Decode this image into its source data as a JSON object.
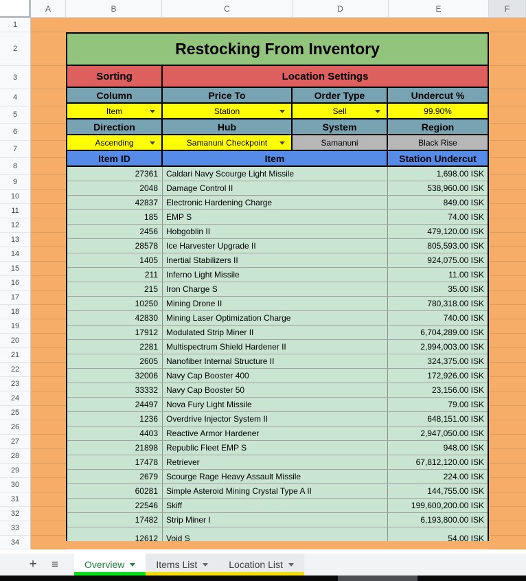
{
  "sheet": {
    "column_headers": [
      "A",
      "B",
      "C",
      "D",
      "E",
      "F"
    ],
    "highlighted_column": "F",
    "first_row": 1,
    "last_row": 34
  },
  "title": "Restocking From Inventory",
  "settings": {
    "section_headers": {
      "sorting": "Sorting",
      "location": "Location Settings"
    },
    "row1_labels": {
      "column": "Column",
      "price_to": "Price To",
      "order_type": "Order Type",
      "undercut": "Undercut %"
    },
    "row1_values": {
      "column": "Item",
      "price_to": "Station",
      "order_type": "Sell",
      "undercut": "99.90%"
    },
    "row2_labels": {
      "direction": "Direction",
      "hub": "Hub",
      "system": "System",
      "region": "Region"
    },
    "row2_values": {
      "direction": "Ascending",
      "hub": "Samanuni Checkpoint",
      "system": "Samanuni",
      "region": "Black Rise"
    }
  },
  "table": {
    "headers": {
      "item_id": "Item ID",
      "item": "Item",
      "station_undercut": "Station Undercut"
    },
    "rows": [
      {
        "row": 9,
        "id": "27361",
        "item": "Caldari Navy Scourge Light Missile",
        "undercut": "1,698.00 ISK"
      },
      {
        "row": 10,
        "id": "2048",
        "item": "Damage Control II",
        "undercut": "538,960.00 ISK"
      },
      {
        "row": 11,
        "id": "42837",
        "item": "Electronic Hardening Charge",
        "undercut": "849.00 ISK"
      },
      {
        "row": 12,
        "id": "185",
        "item": "EMP S",
        "undercut": "74.00 ISK"
      },
      {
        "row": 13,
        "id": "2456",
        "item": "Hobgoblin II",
        "undercut": "479,120.00 ISK"
      },
      {
        "row": 14,
        "id": "28578",
        "item": "Ice Harvester Upgrade II",
        "undercut": "805,593.00 ISK"
      },
      {
        "row": 15,
        "id": "1405",
        "item": "Inertial Stabilizers II",
        "undercut": "924,075.00 ISK"
      },
      {
        "row": 16,
        "id": "211",
        "item": "Inferno Light Missile",
        "undercut": "11.00 ISK"
      },
      {
        "row": 17,
        "id": "215",
        "item": "Iron Charge S",
        "undercut": "35.00 ISK"
      },
      {
        "row": 18,
        "id": "10250",
        "item": "Mining Drone II",
        "undercut": "780,318.00 ISK"
      },
      {
        "row": 19,
        "id": "42830",
        "item": "Mining Laser Optimization Charge",
        "undercut": "740.00 ISK"
      },
      {
        "row": 20,
        "id": "17912",
        "item": "Modulated Strip Miner II",
        "undercut": "6,704,289.00 ISK"
      },
      {
        "row": 21,
        "id": "2281",
        "item": "Multispectrum Shield Hardener II",
        "undercut": "2,994,003.00 ISK"
      },
      {
        "row": 22,
        "id": "2605",
        "item": "Nanofiber Internal Structure II",
        "undercut": "324,375.00 ISK"
      },
      {
        "row": 23,
        "id": "32006",
        "item": "Navy Cap Booster 400",
        "undercut": "172,926.00 ISK"
      },
      {
        "row": 24,
        "id": "33332",
        "item": "Navy Cap Booster 50",
        "undercut": "23,156.00 ISK"
      },
      {
        "row": 25,
        "id": "24497",
        "item": "Nova Fury Light Missile",
        "undercut": "79.00 ISK"
      },
      {
        "row": 26,
        "id": "1236",
        "item": "Overdrive Injector System II",
        "undercut": "648,151.00 ISK"
      },
      {
        "row": 27,
        "id": "4403",
        "item": "Reactive Armor Hardener",
        "undercut": "2,947,050.00 ISK"
      },
      {
        "row": 28,
        "id": "21898",
        "item": "Republic Fleet EMP S",
        "undercut": "948.00 ISK"
      },
      {
        "row": 29,
        "id": "17478",
        "item": "Retriever",
        "undercut": "67,812,120.00 ISK"
      },
      {
        "row": 30,
        "id": "2679",
        "item": "Scourge Rage Heavy Assault Missile",
        "undercut": "224.00 ISK"
      },
      {
        "row": 31,
        "id": "60281",
        "item": "Simple Asteroid Mining Crystal Type A II",
        "undercut": "144,755.00 ISK"
      },
      {
        "row": 32,
        "id": "22546",
        "item": "Skiff",
        "undercut": "199,600,200.00 ISK"
      },
      {
        "row": 33,
        "id": "17482",
        "item": "Strip Miner I",
        "undercut": "6,193,800.00 ISK"
      }
    ],
    "partial_row": {
      "row": 34,
      "id": "12612",
      "item": "Void S",
      "undercut": "54.00 ISK"
    }
  },
  "tabbar": {
    "icons": {
      "add_sheet": "+",
      "all_sheets": "≡"
    },
    "tabs": [
      {
        "label": "Overview",
        "active": true
      },
      {
        "label": "Items List",
        "active": false
      },
      {
        "label": "Location List",
        "active": false
      }
    ]
  },
  "colors": {
    "orange_background": "#f6ad67",
    "title_green": "#93c47d",
    "section_red": "#dd605f",
    "label_teal": "#78a3b2",
    "dropdown_yellow": "#ffff00",
    "readonly_gray": "#b7b7b7",
    "header_blue": "#578be8",
    "data_green": "#c9e5d2",
    "active_tab_green": "#188038",
    "tab_underline_green": "#00e410",
    "tab_underline_yellow": "#f9e000"
  }
}
